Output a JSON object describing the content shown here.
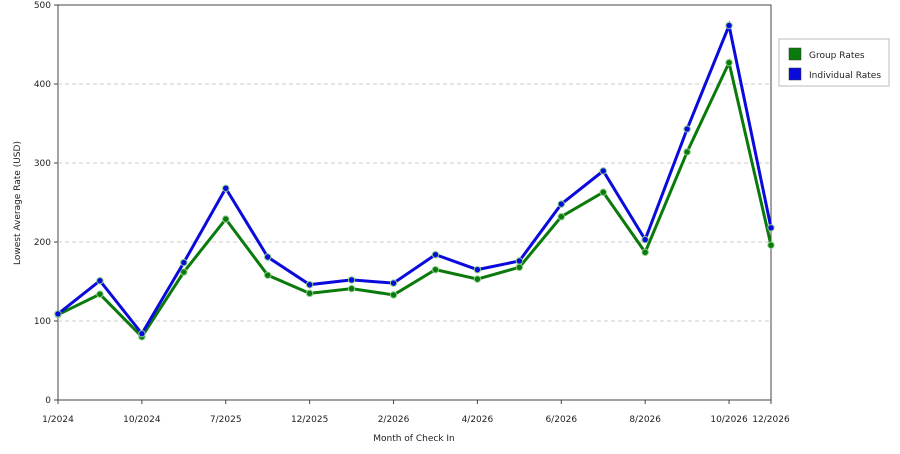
{
  "chart_data": {
    "type": "line",
    "x_label": "Month of Check In",
    "y_label": "Lowest Average Rate (USD)",
    "categories": [
      "1/2024",
      null,
      "10/2024",
      null,
      "7/2025",
      null,
      "12/2025",
      null,
      "2/2026",
      null,
      "4/2026",
      null,
      "6/2026",
      null,
      "8/2026",
      null,
      "10/2026",
      "12/2026"
    ],
    "series": [
      {
        "name": "Group Rates",
        "color": "#0a7a0a",
        "values": [
          108,
          134,
          80,
          162,
          229,
          158,
          135,
          141,
          133,
          165,
          153,
          168,
          232,
          263,
          187,
          314,
          427,
          196
        ]
      },
      {
        "name": "Individual Rates",
        "color": "#0a0adc",
        "values": [
          109,
          151,
          84,
          174,
          268,
          181,
          146,
          152,
          148,
          184,
          165,
          176,
          248,
          290,
          203,
          343,
          474,
          218
        ]
      }
    ],
    "ylim": [
      0,
      500
    ],
    "yticks": [
      0,
      100,
      200,
      300,
      400,
      500
    ],
    "grid": true,
    "legend": "right"
  }
}
